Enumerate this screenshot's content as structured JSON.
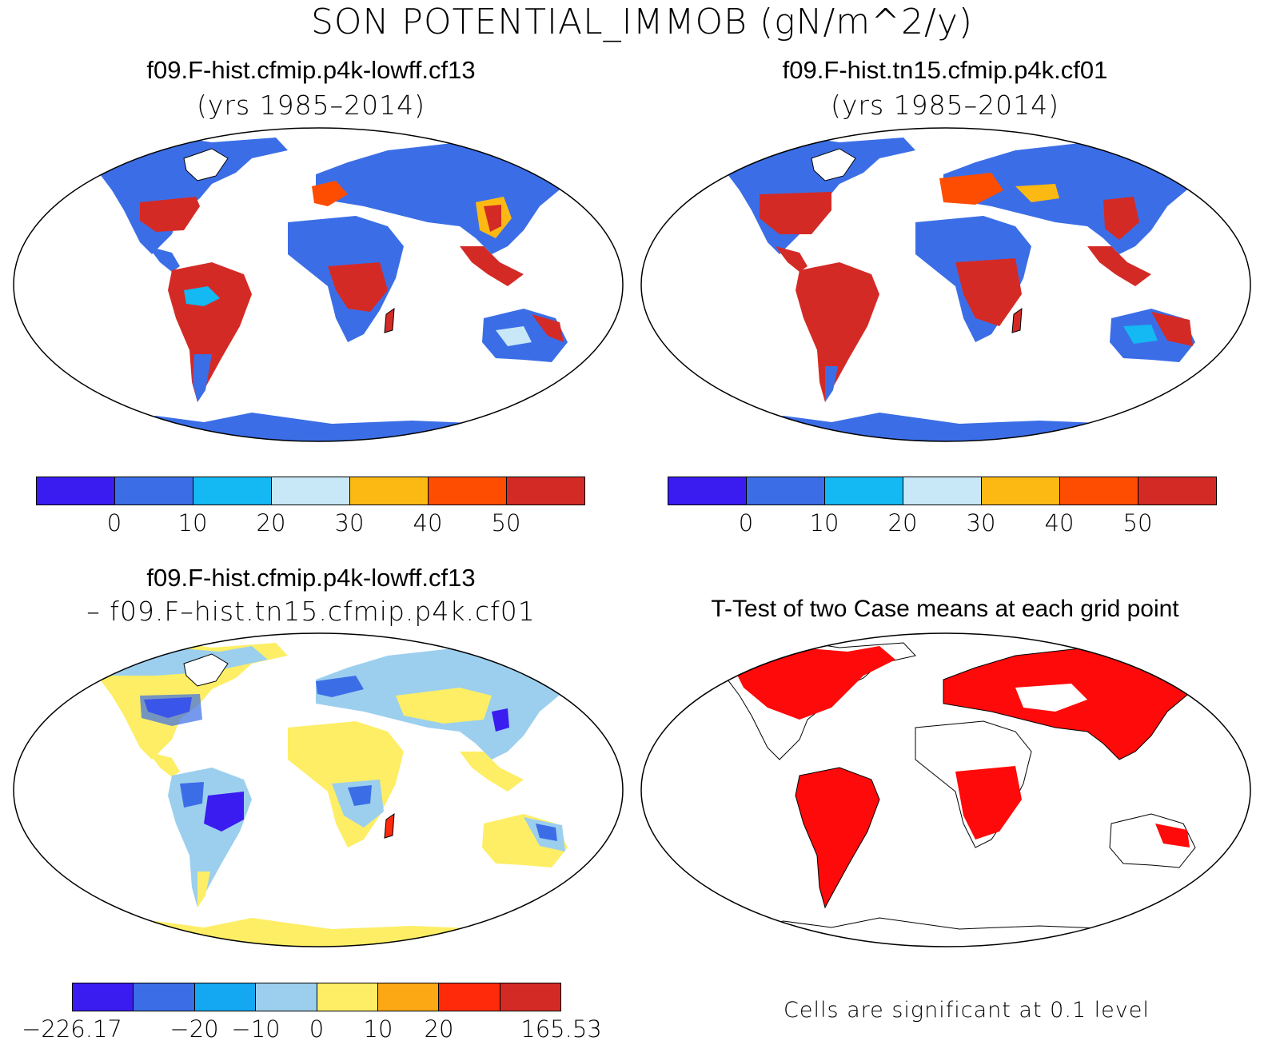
{
  "figure": {
    "title": "SON POTENTIAL_IMMOB (gN/m^2/y)"
  },
  "panels": [
    {
      "id": "case1",
      "title": "f09.F-hist.cfmip.p4k-lowff.cf13",
      "subtitle": "(yrs 1985–2014)",
      "map_kind": "case",
      "colorbar": {
        "colors": [
          "#3a1cf0",
          "#3b6ee6",
          "#14b8f2",
          "#c8e8f8",
          "#fdb913",
          "#fe4d00",
          "#d42a26"
        ],
        "tick_labels": [
          "0",
          "10",
          "20",
          "30",
          "40",
          "50"
        ]
      }
    },
    {
      "id": "case2",
      "title": "f09.F-hist.tn15.cfmip.p4k.cf01",
      "subtitle": "(yrs 1985–2014)",
      "map_kind": "case",
      "colorbar": {
        "colors": [
          "#3a1cf0",
          "#3b6ee6",
          "#14b8f2",
          "#c8e8f8",
          "#fdb913",
          "#fe4d00",
          "#d42a26"
        ],
        "tick_labels": [
          "0",
          "10",
          "20",
          "30",
          "40",
          "50"
        ]
      }
    },
    {
      "id": "diff",
      "title": "f09.F-hist.cfmip.p4k-lowff.cf13",
      "subtitle": "– f09.F–hist.tn15.cfmip.p4k.cf01",
      "map_kind": "diff",
      "colorbar": {
        "colors": [
          "#3a1cf0",
          "#3b6ee6",
          "#14a8f2",
          "#9ccfee",
          "#fdee66",
          "#fca814",
          "#fe2a0a",
          "#d42a26"
        ],
        "tick_labels": [
          "−226.17",
          "−20",
          "−10",
          "0",
          "10",
          "20",
          "165.53"
        ]
      }
    },
    {
      "id": "ttest",
      "title": "T-Test of two Case means at each grid point",
      "map_kind": "ttest",
      "note": "Cells are significant at 0.1 level"
    }
  ]
}
